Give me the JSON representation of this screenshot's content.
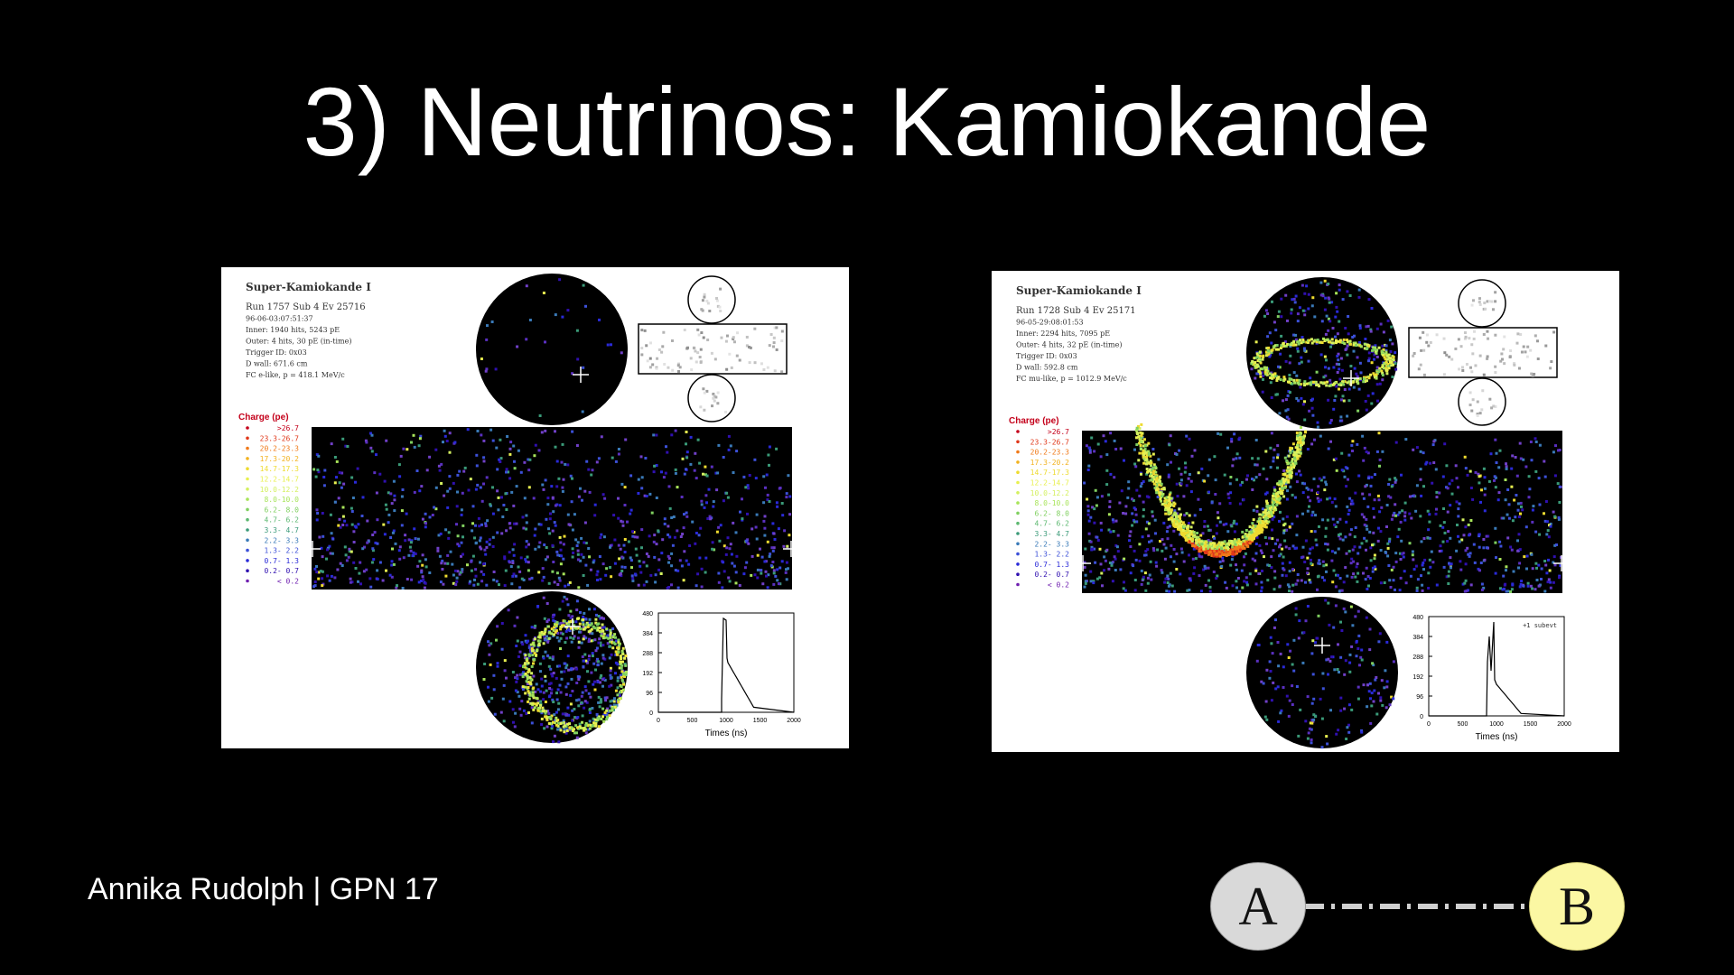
{
  "slide": {
    "title": "3) Neutrinos: Kamiokande",
    "footer": "Annika Rudolph | GPN 17",
    "badge_a": "A",
    "badge_b": "B"
  },
  "event_displays": [
    {
      "heading": "Super-Kamiokande I",
      "run_line": "Run 1757 Sub 4 Ev 25716",
      "date_line": "96-06-03:07:51:37",
      "inner_line": "Inner: 1940 hits, 5243 pE",
      "outer_line": "Outer: 4 hits, 30 pE (in-time)",
      "trigger_line": "Trigger ID: 0x03",
      "dwall_line": "D wall: 671.6 cm",
      "fc_line": "FC e-like, p = 418.1 MeV/c",
      "histogram_ylabels": [
        "480",
        "384",
        "288",
        "192",
        "96",
        "0"
      ],
      "histogram_xlabels": [
        "0",
        "500",
        "1000",
        "1500",
        "2000"
      ],
      "histogram_xtitle": "Times (ns)",
      "subevent_note": ""
    },
    {
      "heading": "Super-Kamiokande I",
      "run_line": "Run 1728 Sub 4 Ev 25171",
      "date_line": "96-05-29:08:01:53",
      "inner_line": "Inner: 2294 hits, 7095 pE",
      "outer_line": "Outer: 4 hits, 32 pE (in-time)",
      "trigger_line": "Trigger ID: 0x03",
      "dwall_line": "D wall: 592.8 cm",
      "fc_line": "FC mu-like, p = 1012.9 MeV/c",
      "histogram_ylabels": [
        "480",
        "384",
        "288",
        "192",
        "96",
        "0"
      ],
      "histogram_xlabels": [
        "0",
        "500",
        "1000",
        "1500",
        "2000"
      ],
      "histogram_xtitle": "Times (ns)",
      "subevent_note": "+1 subevt"
    }
  ],
  "charge_legend": {
    "title": "Charge (pe)",
    "entries": [
      {
        "label": ">26.7",
        "color": "#c4001a"
      },
      {
        "label": "23.3-26.7",
        "color": "#e0381a"
      },
      {
        "label": "20.2-23.3",
        "color": "#f07a1a"
      },
      {
        "label": "17.3-20.2",
        "color": "#f2b21f"
      },
      {
        "label": "14.7-17.3",
        "color": "#eedb30"
      },
      {
        "label": "12.2-14.7",
        "color": "#e8f050"
      },
      {
        "label": "10.0-12.2",
        "color": "#d4f060"
      },
      {
        "label": "8.0-10.0",
        "color": "#a8e45a"
      },
      {
        "label": "6.2- 8.0",
        "color": "#80d060"
      },
      {
        "label": "4.7- 6.2",
        "color": "#5cb870"
      },
      {
        "label": "3.3- 4.7",
        "color": "#3a9a78"
      },
      {
        "label": "2.2- 3.3",
        "color": "#3a7ab8"
      },
      {
        "label": "1.3- 2.2",
        "color": "#3c50d8"
      },
      {
        "label": "0.7- 1.3",
        "color": "#2a2ad8"
      },
      {
        "label": "0.2- 0.7",
        "color": "#3010b0"
      },
      {
        "label": "< 0.2",
        "color": "#7020b0"
      }
    ]
  }
}
